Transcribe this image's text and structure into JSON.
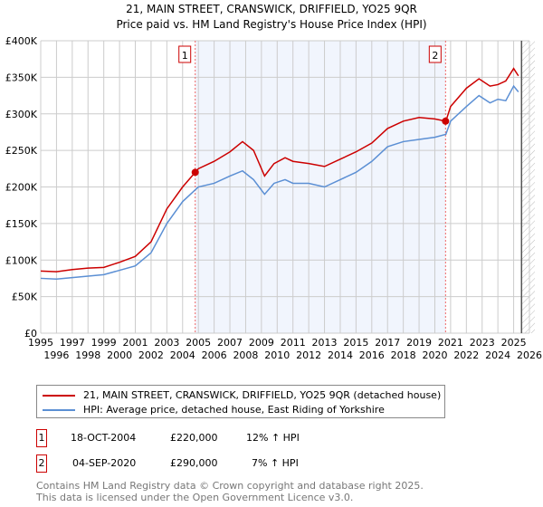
{
  "chart_data": {
    "type": "line",
    "title": "21, MAIN STREET, CRANSWICK, DRIFFIELD, YO25 9QR",
    "subtitle": "Price paid vs. HM Land Registry's House Price Index (HPI)",
    "xlim": [
      1995,
      2026
    ],
    "ylim": [
      0,
      400000
    ],
    "x_ticks": [
      "1995",
      "1996",
      "1997",
      "1998",
      "1999",
      "2000",
      "2001",
      "2002",
      "2003",
      "2004",
      "2005",
      "2006",
      "2007",
      "2008",
      "2009",
      "2010",
      "2011",
      "2012",
      "2013",
      "2014",
      "2015",
      "2016",
      "2017",
      "2018",
      "2019",
      "2020",
      "2021",
      "2022",
      "2023",
      "2024",
      "2025",
      "2026"
    ],
    "y_ticks": [
      {
        "v": 0,
        "label": "£0"
      },
      {
        "v": 50000,
        "label": "£50K"
      },
      {
        "v": 100000,
        "label": "£100K"
      },
      {
        "v": 150000,
        "label": "£150K"
      },
      {
        "v": 200000,
        "label": "£200K"
      },
      {
        "v": 250000,
        "label": "£250K"
      },
      {
        "v": 300000,
        "label": "£300K"
      },
      {
        "v": 350000,
        "label": "£350K"
      },
      {
        "v": 400000,
        "label": "£400K"
      }
    ],
    "grid": true,
    "series": [
      {
        "name": "21, MAIN STREET, CRANSWICK, DRIFFIELD, YO25 9QR (detached house)",
        "color": "#cc0000",
        "x": [
          1995,
          1996,
          1997,
          1998,
          1999,
          2000,
          2001,
          2002,
          2003,
          2004,
          2004.8,
          2005,
          2006,
          2007,
          2007.8,
          2008.5,
          2009.2,
          2009.8,
          2010.5,
          2011,
          2012,
          2013,
          2014,
          2015,
          2016,
          2017,
          2018,
          2019,
          2020,
          2020.7,
          2021,
          2022,
          2022.8,
          2023.5,
          2024,
          2024.5,
          2025,
          2025.3
        ],
        "y": [
          85000,
          84000,
          87000,
          89000,
          90000,
          97000,
          105000,
          125000,
          170000,
          200000,
          220000,
          225000,
          235000,
          248000,
          262000,
          250000,
          215000,
          232000,
          240000,
          235000,
          232000,
          228000,
          238000,
          248000,
          260000,
          280000,
          290000,
          295000,
          293000,
          290000,
          310000,
          335000,
          348000,
          338000,
          340000,
          345000,
          362000,
          352000
        ]
      },
      {
        "name": "HPI: Average price, detached house, East Riding of Yorkshire",
        "color": "#5b8fd4",
        "x": [
          1995,
          1996,
          1997,
          1998,
          1999,
          2000,
          2001,
          2002,
          2003,
          2004,
          2004.8,
          2005,
          2006,
          2007,
          2007.8,
          2008.5,
          2009.2,
          2009.8,
          2010.5,
          2011,
          2012,
          2013,
          2014,
          2015,
          2016,
          2017,
          2018,
          2019,
          2020,
          2020.7,
          2021,
          2022,
          2022.8,
          2023.5,
          2024,
          2024.5,
          2025,
          2025.3
        ],
        "y": [
          75000,
          74000,
          76000,
          78000,
          80000,
          86000,
          92000,
          110000,
          150000,
          180000,
          196000,
          200000,
          205000,
          215000,
          222000,
          210000,
          190000,
          205000,
          210000,
          205000,
          205000,
          200000,
          210000,
          220000,
          235000,
          255000,
          262000,
          265000,
          268000,
          272000,
          290000,
          310000,
          325000,
          315000,
          320000,
          318000,
          338000,
          330000
        ]
      }
    ],
    "annotations": [
      {
        "label": "1",
        "x": 2004.8,
        "y": 220000
      },
      {
        "label": "2",
        "x": 2020.68,
        "y": 290000
      }
    ],
    "forecast_from": 2025.5
  },
  "legend": {
    "red": "21, MAIN STREET, CRANSWICK, DRIFFIELD, YO25 9QR (detached house)",
    "blue": "HPI: Average price, detached house, East Riding of Yorkshire"
  },
  "transactions": [
    {
      "n": "1",
      "date": "18-OCT-2004",
      "price": "£220,000",
      "hpi": "12% ↑ HPI"
    },
    {
      "n": "2",
      "date": "04-SEP-2020",
      "price": "£290,000",
      "hpi": "7% ↑ HPI"
    }
  ],
  "footer": [
    "Contains HM Land Registry data © Crown copyright and database right 2025.",
    "This data is licensed under the Open Government Licence v3.0."
  ]
}
